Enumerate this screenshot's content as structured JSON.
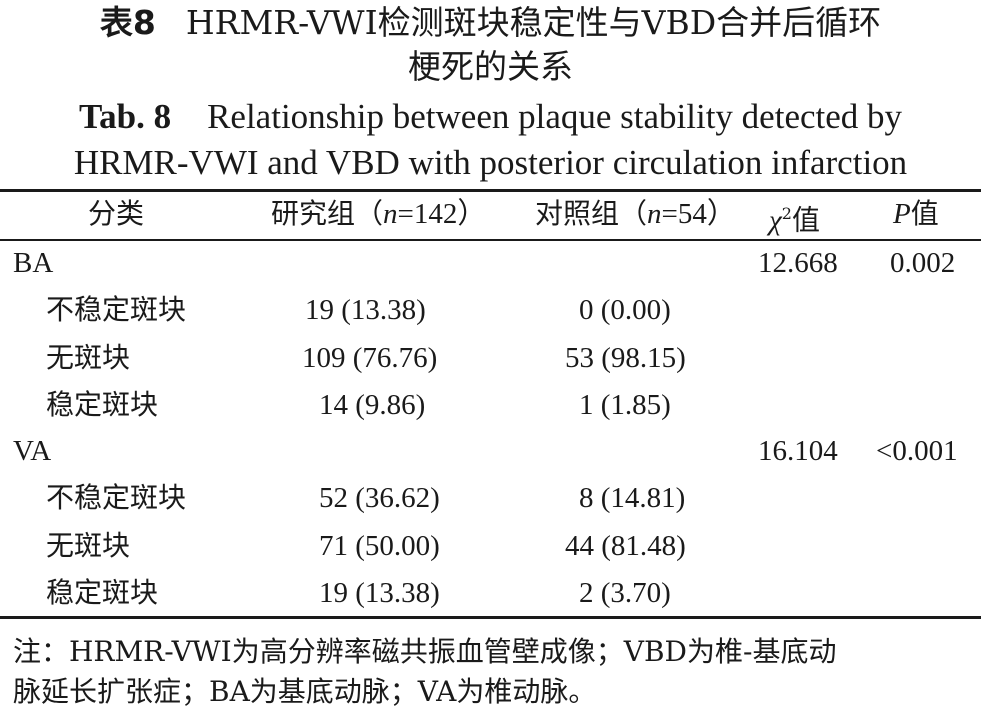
{
  "title": {
    "cn_label": "表8",
    "cn_line1": "HRMR-VWI检测斑块稳定性与VBD合并后循环",
    "cn_line2": "梗死的关系",
    "en_label": "Tab. 8",
    "en_line1": "Relationship between plaque stability detected by",
    "en_line2": "HRMR-VWI and VBD with posterior circulation infarction"
  },
  "table": {
    "headers": {
      "category": "分类",
      "study_prefix": "研究组（",
      "study_n": "n",
      "study_suffix": "=142）",
      "control_prefix": "对照组（",
      "control_n": "n",
      "control_suffix": "=54）",
      "chi_symbol": "χ",
      "chi_sup": "2",
      "chi_suffix": "值",
      "p_symbol": "P",
      "p_suffix": "值"
    },
    "groups": [
      {
        "name": "BA",
        "chi2": "12.668",
        "p": "0.002",
        "rows": [
          {
            "label": "不稳定斑块",
            "study": "19 (13.38)",
            "control": "0 (0.00)"
          },
          {
            "label": "无斑块",
            "study": "109 (76.76)",
            "control": "53 (98.15)"
          },
          {
            "label": "稳定斑块",
            "study": "14 (9.86)",
            "control": "1 (1.85)"
          }
        ]
      },
      {
        "name": "VA",
        "chi2": "16.104",
        "p": "<0.001",
        "rows": [
          {
            "label": "不稳定斑块",
            "study": "52 (36.62)",
            "control": "8 (14.81)"
          },
          {
            "label": "无斑块",
            "study": "71 (50.00)",
            "control": "44 (81.48)"
          },
          {
            "label": "稳定斑块",
            "study": "19 (13.38)",
            "control": "2 (3.70)"
          }
        ]
      }
    ]
  },
  "note": {
    "line1": "注：HRMR-VWI为高分辨率磁共振血管壁成像；VBD为椎-基底动",
    "line2": "脉延长扩张症；BA为基底动脉；VA为椎动脉。"
  }
}
